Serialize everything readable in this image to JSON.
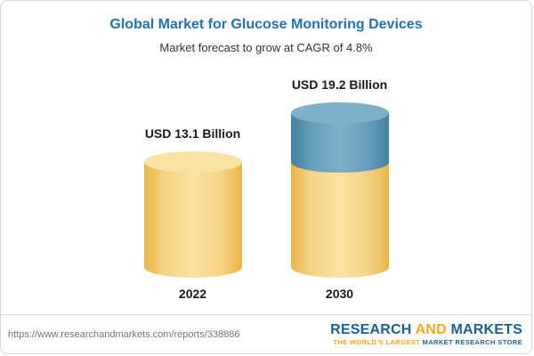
{
  "header": {
    "title": "Global Market for Glucose Monitoring Devices",
    "subtitle": "Market forecast to grow at CAGR of 4.8%"
  },
  "chart_data": {
    "type": "bar",
    "bar_style": "3d-cylinder",
    "categories": [
      "2022",
      "2030"
    ],
    "values": [
      13.1,
      19.2
    ],
    "unit": "USD Billion",
    "value_labels": [
      "USD 13.1 Billion",
      "USD 19.2 Billion"
    ],
    "title": "Global Market for Glucose Monitoring Devices",
    "subtitle": "Market forecast to grow at CAGR of 4.8%",
    "ylim": [
      0,
      20
    ],
    "gridlines": false,
    "legend": false,
    "colors": {
      "base_segment": "#f3cf78",
      "growth_segment": "#5d95b4",
      "title_text": "#2371b7",
      "label_text": "#1a1a1a"
    },
    "annotation": "2030 bar shows growth above the 2022 level as a blue top segment"
  },
  "footer": {
    "url": "https://www.researchandmarkets.com/reports/338886",
    "logo": {
      "research": "RESEARCH ",
      "and": "AND",
      "markets": " MARKETS",
      "tagline1": "THE WORLD'S LARGEST ",
      "tagline2": "MARKET RESEARCH STORE"
    }
  }
}
